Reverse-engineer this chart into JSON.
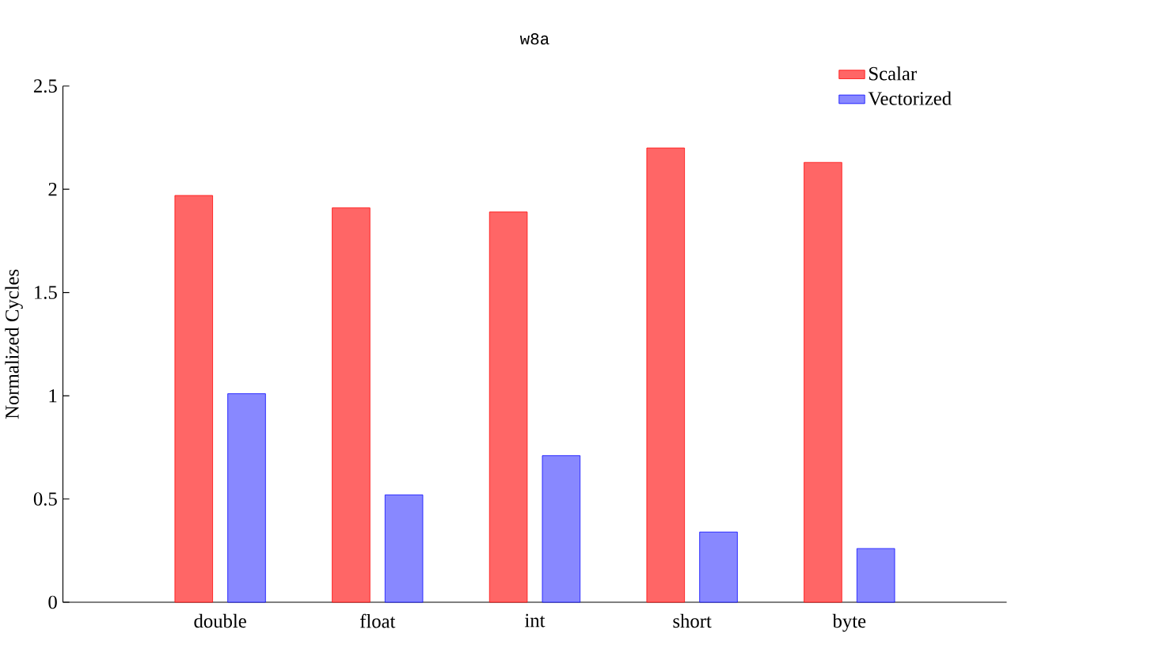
{
  "chart_data": {
    "type": "bar",
    "title": "w8a",
    "ylabel": "Normalized Cycles",
    "categories": [
      "double",
      "float",
      "int",
      "short",
      "byte"
    ],
    "series": [
      {
        "name": "Scalar",
        "color": "#ff6666",
        "values": [
          1.97,
          1.91,
          1.89,
          2.2,
          2.13
        ]
      },
      {
        "name": "Vectorized",
        "color": "#8888ff",
        "values": [
          1.01,
          0.52,
          0.71,
          0.34,
          0.26
        ]
      }
    ],
    "ylim": [
      0,
      2.5
    ],
    "yticks": [
      0,
      0.5,
      1,
      1.5,
      2,
      2.5
    ],
    "legend": "top right",
    "grid": false
  }
}
